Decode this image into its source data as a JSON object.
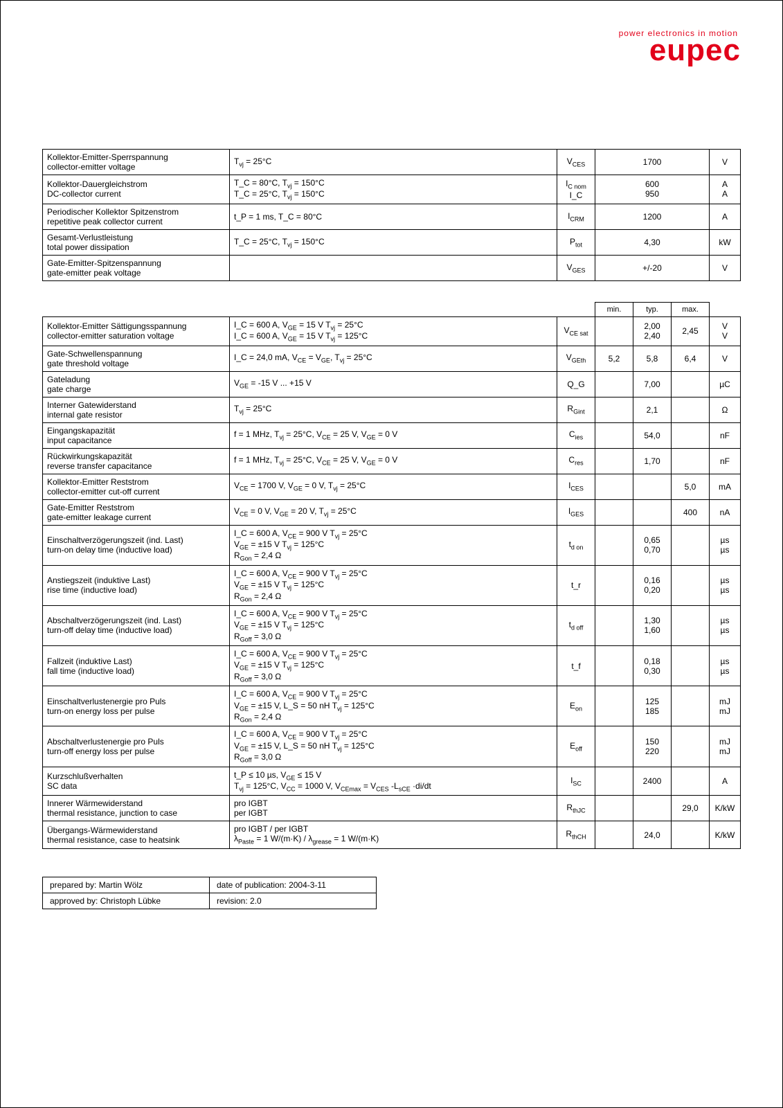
{
  "logo": {
    "tagline": "power electronics in motion",
    "brand": "eupec"
  },
  "table1": {
    "rows": [
      {
        "param_de": "Kollektor-Emitter-Sperrspannung",
        "param_en": "collector-emitter voltage",
        "cond": "T_{vj} = 25°C",
        "sym": "V_{CES}",
        "val": "1700",
        "unit": "V"
      },
      {
        "param_de": "Kollektor-Dauergleichstrom",
        "param_en": "DC-collector current",
        "cond": "T_C = 80°C, T_{vj} = 150°C\nT_C = 25°C, T_{vj} = 150°C",
        "sym": "I_{C nom}\nI_C",
        "val": "600\n950",
        "unit": "A\nA"
      },
      {
        "param_de": "Periodischer Kollektor Spitzenstrom",
        "param_en": "repetitive peak collector current",
        "cond": "t_P = 1 ms, T_C = 80°C",
        "sym": "I_{CRM}",
        "val": "1200",
        "unit": "A"
      },
      {
        "param_de": "Gesamt-Verlustleistung",
        "param_en": "total power dissipation",
        "cond": "T_C = 25°C, T_{vj} = 150°C",
        "sym": "P_{tot}",
        "val": "4,30",
        "unit": "kW"
      },
      {
        "param_de": "Gate-Emitter-Spitzenspannung",
        "param_en": "gate-emitter peak voltage",
        "cond": "",
        "sym": "V_{GES}",
        "val": "+/-20",
        "unit": "V"
      }
    ]
  },
  "hdr": {
    "min": "min.",
    "typ": "typ.",
    "max": "max."
  },
  "table2": {
    "rows": [
      {
        "param_de": "Kollektor-Emitter Sättigungsspannung",
        "param_en": "collector-emitter saturation voltage",
        "cond": "I_C = 600 A, V_{GE} = 15 V              T_{vj} = 25°C\nI_C = 600 A, V_{GE} = 15 V              T_{vj} = 125°C",
        "sym": "V_{CE sat}",
        "min": "",
        "typ": "2,00\n2,40",
        "max": "2,45",
        "unit": "V\nV"
      },
      {
        "param_de": "Gate-Schwellenspannung",
        "param_en": "gate threshold voltage",
        "cond": "I_C = 24,0 mA, V_{CE} = V_{GE}, T_{vj} = 25°C",
        "sym": "V_{GEth}",
        "min": "5,2",
        "typ": "5,8",
        "max": "6,4",
        "unit": "V"
      },
      {
        "param_de": "Gateladung",
        "param_en": "gate charge",
        "cond": "V_{GE} = -15 V ... +15 V",
        "sym": "Q_G",
        "min": "",
        "typ": "7,00",
        "max": "",
        "unit": "µC"
      },
      {
        "param_de": "Interner Gatewiderstand",
        "param_en": "internal gate resistor",
        "cond": "T_{vj} = 25°C",
        "sym": "R_{Gint}",
        "min": "",
        "typ": "2,1",
        "max": "",
        "unit": "Ω"
      },
      {
        "param_de": "Eingangskapazität",
        "param_en": "input capacitance",
        "cond": "f = 1 MHz, T_{vj} = 25°C, V_{CE} = 25 V, V_{GE} = 0 V",
        "sym": "C_{ies}",
        "min": "",
        "typ": "54,0",
        "max": "",
        "unit": "nF"
      },
      {
        "param_de": "Rückwirkungskapazität",
        "param_en": "reverse transfer capacitance",
        "cond": "f = 1 MHz, T_{vj} = 25°C, V_{CE} = 25 V, V_{GE} = 0 V",
        "sym": "C_{res}",
        "min": "",
        "typ": "1,70",
        "max": "",
        "unit": "nF"
      },
      {
        "param_de": "Kollektor-Emitter Reststrom",
        "param_en": "collector-emitter cut-off current",
        "cond": "V_{CE} = 1700 V, V_{GE} = 0 V, T_{vj} = 25°C",
        "sym": "I_{CES}",
        "min": "",
        "typ": "",
        "max": "5,0",
        "unit": "mA"
      },
      {
        "param_de": "Gate-Emitter Reststrom",
        "param_en": "gate-emitter leakage current",
        "cond": "V_{CE} = 0 V, V_{GE} = 20 V, T_{vj} = 25°C",
        "sym": "I_{GES}",
        "min": "",
        "typ": "",
        "max": "400",
        "unit": "nA"
      },
      {
        "param_de": "Einschaltverzögerungszeit (ind. Last)",
        "param_en": "turn-on delay time (inductive load)",
        "cond": "I_C = 600 A, V_{CE} = 900 V              T_{vj} = 25°C\nV_{GE} = ±15 V                                     T_{vj} = 125°C\nR_{Gon} = 2,4 Ω",
        "sym": "t_{d on}",
        "min": "",
        "typ": "0,65\n0,70",
        "max": "",
        "unit": "µs\nµs"
      },
      {
        "param_de": "Anstiegszeit (induktive Last)",
        "param_en": "rise time (inductive load)",
        "cond": "I_C = 600 A, V_{CE} = 900 V              T_{vj} = 25°C\nV_{GE} = ±15 V                                     T_{vj} = 125°C\nR_{Gon} = 2,4 Ω",
        "sym": "t_r",
        "min": "",
        "typ": "0,16\n0,20",
        "max": "",
        "unit": "µs\nµs"
      },
      {
        "param_de": "Abschaltverzögerungszeit (ind. Last)",
        "param_en": "turn-off delay time (inductive load)",
        "cond": "I_C = 600 A, V_{CE} = 900 V              T_{vj} = 25°C\nV_{GE} = ±15 V                                     T_{vj} = 125°C\nR_{Goff} = 3,0 Ω",
        "sym": "t_{d off}",
        "min": "",
        "typ": "1,30\n1,60",
        "max": "",
        "unit": "µs\nµs"
      },
      {
        "param_de": "Fallzeit (induktive Last)",
        "param_en": "fall time (inductive load)",
        "cond": "I_C = 600 A, V_{CE} = 900 V              T_{vj} = 25°C\nV_{GE} = ±15 V                                     T_{vj} = 125°C\nR_{Goff} = 3,0 Ω",
        "sym": "t_f",
        "min": "",
        "typ": "0,18\n0,30",
        "max": "",
        "unit": "µs\nµs"
      },
      {
        "param_de": "Einschaltverlustenergie pro Puls",
        "param_en": "turn-on energy loss per pulse",
        "cond": "I_C = 600 A, V_{CE} = 900 V              T_{vj} = 25°C\nV_{GE} = ±15 V, L_S = 50 nH              T_{vj} = 125°C\nR_{Gon} = 2,4 Ω",
        "sym": "E_{on}",
        "min": "",
        "typ": "125\n185",
        "max": "",
        "unit": "mJ\nmJ"
      },
      {
        "param_de": "Abschaltverlustenergie pro Puls",
        "param_en": "turn-off energy loss per pulse",
        "cond": "I_C = 600 A, V_{CE} = 900 V              T_{vj} = 25°C\nV_{GE} = ±15 V, L_S = 50 nH              T_{vj} = 125°C\nR_{Goff} = 3,0 Ω",
        "sym": "E_{off}",
        "min": "",
        "typ": "150\n220",
        "max": "",
        "unit": "mJ\nmJ"
      },
      {
        "param_de": "Kurzschlußverhalten",
        "param_en": "SC data",
        "cond": "t_P ≤ 10 µs, V_{GE} ≤ 15 V\nT_{vj} = 125°C, V_{CC} = 1000 V, V_{CEmax} = V_{CES} -L_{sCE} ·di/dt",
        "sym": "I_{SC}",
        "min": "",
        "typ": "2400",
        "max": "",
        "unit": "A"
      },
      {
        "param_de": "Innerer Wärmewiderstand",
        "param_en": "thermal resistance, junction to case",
        "cond": "pro IGBT\nper IGBT",
        "sym": "R_{thJC}",
        "min": "",
        "typ": "",
        "max": "29,0",
        "unit": "K/kW"
      },
      {
        "param_de": "Übergangs-Wärmewiderstand",
        "param_en": "thermal resistance, case to heatsink",
        "cond": "pro IGBT / per IGBT\nλ_{Paste} = 1 W/(m·K)  /   λ_{grease} = 1 W/(m·K)",
        "sym": "R_{thCH}",
        "min": "",
        "typ": "24,0",
        "max": "",
        "unit": "K/kW"
      }
    ]
  },
  "meta": {
    "prepared_label": "prepared by: Martin Wölz",
    "date_label": "date of publication: 2004-3-11",
    "approved_label": "approved by: Christoph Lübke",
    "rev_label": "revision: 2.0"
  }
}
